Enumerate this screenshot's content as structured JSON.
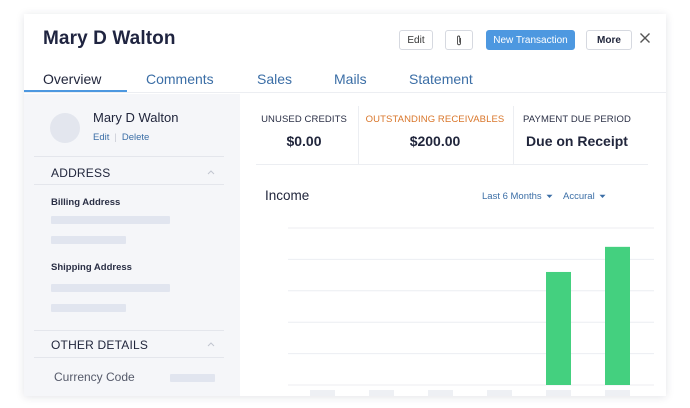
{
  "header": {
    "title": "Mary D Walton",
    "edit_label": "Edit",
    "attach_icon": "paperclip-icon",
    "new_transaction_label": "New Transaction",
    "more_label": "More",
    "close_icon": "close-icon"
  },
  "tabs": [
    {
      "label": "Overview",
      "active": true
    },
    {
      "label": "Comments",
      "active": false
    },
    {
      "label": "Sales",
      "active": false
    },
    {
      "label": "Mails",
      "active": false
    },
    {
      "label": "Statement",
      "active": false
    }
  ],
  "sidebar": {
    "name": "Mary D Walton",
    "edit_link": "Edit",
    "delete_link": "Delete",
    "address_heading": "ADDRESS",
    "billing_label": "Billing Address",
    "shipping_label": "Shipping Address",
    "other_heading": "OTHER DETAILS",
    "currency_label": "Currency Code"
  },
  "metrics": [
    {
      "label": "UNUSED CREDITS",
      "value": "$0.00"
    },
    {
      "label": "OUTSTANDING RECEIVABLES",
      "value": "$200.00"
    },
    {
      "label": "PAYMENT DUE PERIOD",
      "value": "Due on Receipt"
    }
  ],
  "income": {
    "title": "Income",
    "period_filter": "Last 6 Months",
    "basis_filter": "Accural"
  },
  "colors": {
    "accent": "#4d98e0",
    "link": "#3b6ea6",
    "warning": "#d9762a",
    "bar": "#44d07f"
  },
  "chart_data": {
    "type": "bar",
    "categories": [
      "",
      "",
      "",
      "",
      "",
      ""
    ],
    "values": [
      0,
      0,
      0,
      0,
      0.72,
      0.88
    ],
    "ylim": [
      0,
      1
    ],
    "grid": true
  }
}
